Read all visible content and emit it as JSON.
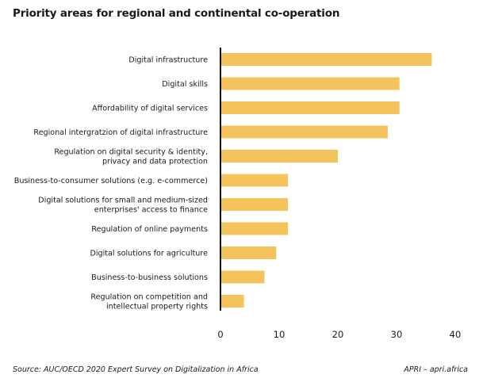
{
  "title": "Priority areas for regional and continental co-operation",
  "source": "Source: AUC/OECD 2020 Expert Survey on Digitalization in Africa",
  "credit": "APRI – apri.africa",
  "colors": {
    "bar": "#f5c35c",
    "axis": "#111111"
  },
  "chart_data": {
    "type": "bar",
    "orientation": "horizontal",
    "title": "Priority areas for regional and continental co-operation",
    "xlabel": "",
    "ylabel": "",
    "xlim": [
      0,
      40
    ],
    "ticks": [
      0,
      10,
      20,
      30,
      40
    ],
    "categories": [
      [
        "Digital infrastructure"
      ],
      [
        "Digital skills"
      ],
      [
        "Affordability of digital services"
      ],
      [
        "Regional intergratzion of digital infrastructure"
      ],
      [
        "Regulation on digital security & identity,",
        "privacy and data protection"
      ],
      [
        "Business-to-consumer solutions (e.g. e-commerce)"
      ],
      [
        "Digital solutions for small and medium-sized",
        "enterprises' access to finance"
      ],
      [
        "Regulation of online payments"
      ],
      [
        "Digital solutions for agriculture"
      ],
      [
        "Business-to-business solutions"
      ],
      [
        "Regulation on competition and",
        "intellectual property rights"
      ]
    ],
    "values": [
      36,
      30.5,
      30.5,
      28.5,
      20,
      11.5,
      11.5,
      11.5,
      9.5,
      7.5,
      4
    ]
  }
}
